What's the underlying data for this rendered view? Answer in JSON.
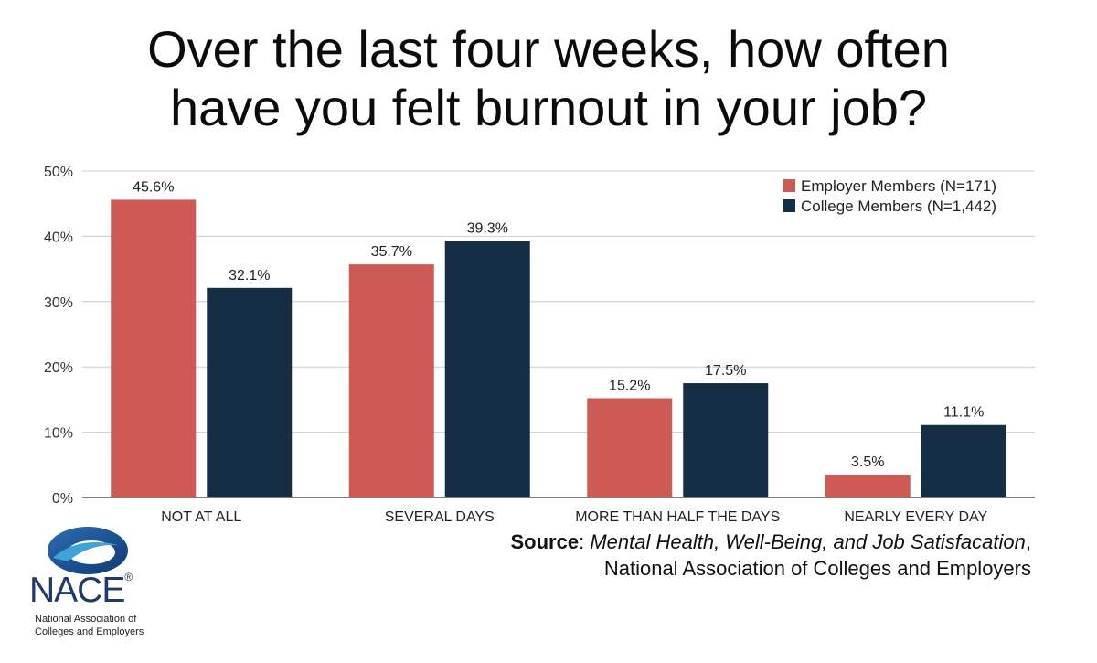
{
  "title_lines": [
    "Over the last four weeks, how often",
    "have you felt burnout in your job?"
  ],
  "source": {
    "label": "Source",
    "colon": ":",
    "work": "Mental Health, Well-Being, and Job Satisfacation",
    "comma": ",",
    "publisher": "National Association of Colleges and Employers"
  },
  "logo": {
    "name": "NACE",
    "reg_mark": "®",
    "line1": "National Association of",
    "line2": "Colleges and Employers"
  },
  "colors": {
    "employer": "#cd5a55",
    "college": "#152d45",
    "grid": "#cccccc",
    "axis_text": "#333333"
  },
  "chart_data": {
    "type": "bar",
    "categories": [
      "NOT AT ALL",
      "SEVERAL DAYS",
      "MORE THAN HALF THE DAYS",
      "NEARLY EVERY DAY"
    ],
    "series": [
      {
        "name": "Employer Members (N=171)",
        "values": [
          45.6,
          35.7,
          15.2,
          3.5
        ],
        "labels": [
          "45.6%",
          "35.7%",
          "15.2%",
          "3.5%"
        ],
        "color": "#cd5a55"
      },
      {
        "name": "College Members (N=1,442)",
        "values": [
          32.1,
          39.3,
          17.5,
          11.1
        ],
        "labels": [
          "32.1%",
          "39.3%",
          "17.5%",
          "11.1%"
        ],
        "color": "#152d45"
      }
    ],
    "ylim": [
      0,
      50
    ],
    "yticks": [
      0,
      10,
      20,
      30,
      40,
      50
    ],
    "ytick_labels": [
      "0%",
      "10%",
      "20%",
      "30%",
      "40%",
      "50%"
    ],
    "grid": true,
    "legend_position": "top-right"
  }
}
